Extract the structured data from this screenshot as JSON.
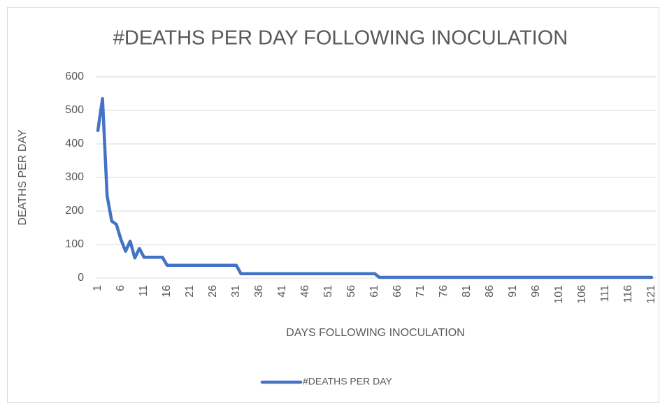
{
  "chart_data": {
    "type": "line",
    "title": "#DEATHS PER DAY FOLLOWING INOCULATION",
    "x_label": "DAYS FOLLOWING INOCULATION",
    "y_label": "DEATHS PER DAY",
    "categories": [
      "1",
      null,
      null,
      null,
      null,
      "6",
      null,
      null,
      null,
      null,
      "11",
      null,
      null,
      null,
      null,
      "16",
      null,
      null,
      null,
      null,
      "21",
      null,
      null,
      null,
      null,
      "26",
      null,
      null,
      null,
      null,
      "31",
      null,
      null,
      null,
      null,
      "36",
      null,
      null,
      null,
      null,
      "41",
      null,
      null,
      null,
      null,
      "46",
      null,
      null,
      null,
      null,
      "51",
      null,
      null,
      null,
      null,
      "56",
      null,
      null,
      null,
      null,
      "61",
      null,
      null,
      null,
      null,
      "66",
      null,
      null,
      null,
      null,
      "71",
      null,
      null,
      null,
      null,
      "76",
      null,
      null,
      null,
      null,
      "81",
      null,
      null,
      null,
      null,
      "86",
      null,
      null,
      null,
      null,
      "91",
      null,
      null,
      null,
      null,
      "96",
      null,
      null,
      null,
      null,
      "101",
      null,
      null,
      null,
      null,
      "106",
      null,
      null,
      null,
      null,
      "111",
      null,
      null,
      null,
      null,
      "116",
      null,
      null,
      null,
      null,
      "121"
    ],
    "series": [
      {
        "name": "#DEATHS PER DAY",
        "color": "#4472c4",
        "values": [
          440,
          535,
          245,
          170,
          160,
          115,
          80,
          110,
          60,
          88,
          62,
          62,
          62,
          62,
          62,
          38,
          38,
          38,
          38,
          38,
          38,
          38,
          38,
          38,
          38,
          38,
          38,
          38,
          38,
          38,
          38,
          13,
          13,
          13,
          13,
          13,
          13,
          13,
          13,
          13,
          13,
          13,
          13,
          13,
          13,
          13,
          13,
          13,
          13,
          13,
          13,
          13,
          13,
          13,
          13,
          13,
          13,
          13,
          13,
          13,
          13,
          2,
          2,
          2,
          2,
          2,
          2,
          2,
          2,
          2,
          2,
          2,
          2,
          2,
          2,
          2,
          2,
          2,
          2,
          2,
          2,
          2,
          2,
          2,
          2,
          2,
          2,
          2,
          2,
          2,
          2,
          2,
          2,
          2,
          2,
          2,
          2,
          2,
          2,
          2,
          2,
          2,
          2,
          2,
          2,
          2,
          2,
          2,
          2,
          2,
          2,
          2,
          2,
          2,
          2,
          2,
          2,
          2,
          2,
          2,
          2
        ]
      }
    ],
    "ylim": [
      0,
      600
    ],
    "yticks": [
      0,
      100,
      200,
      300,
      400,
      500,
      600
    ],
    "grid": true,
    "legend": "bottom"
  }
}
